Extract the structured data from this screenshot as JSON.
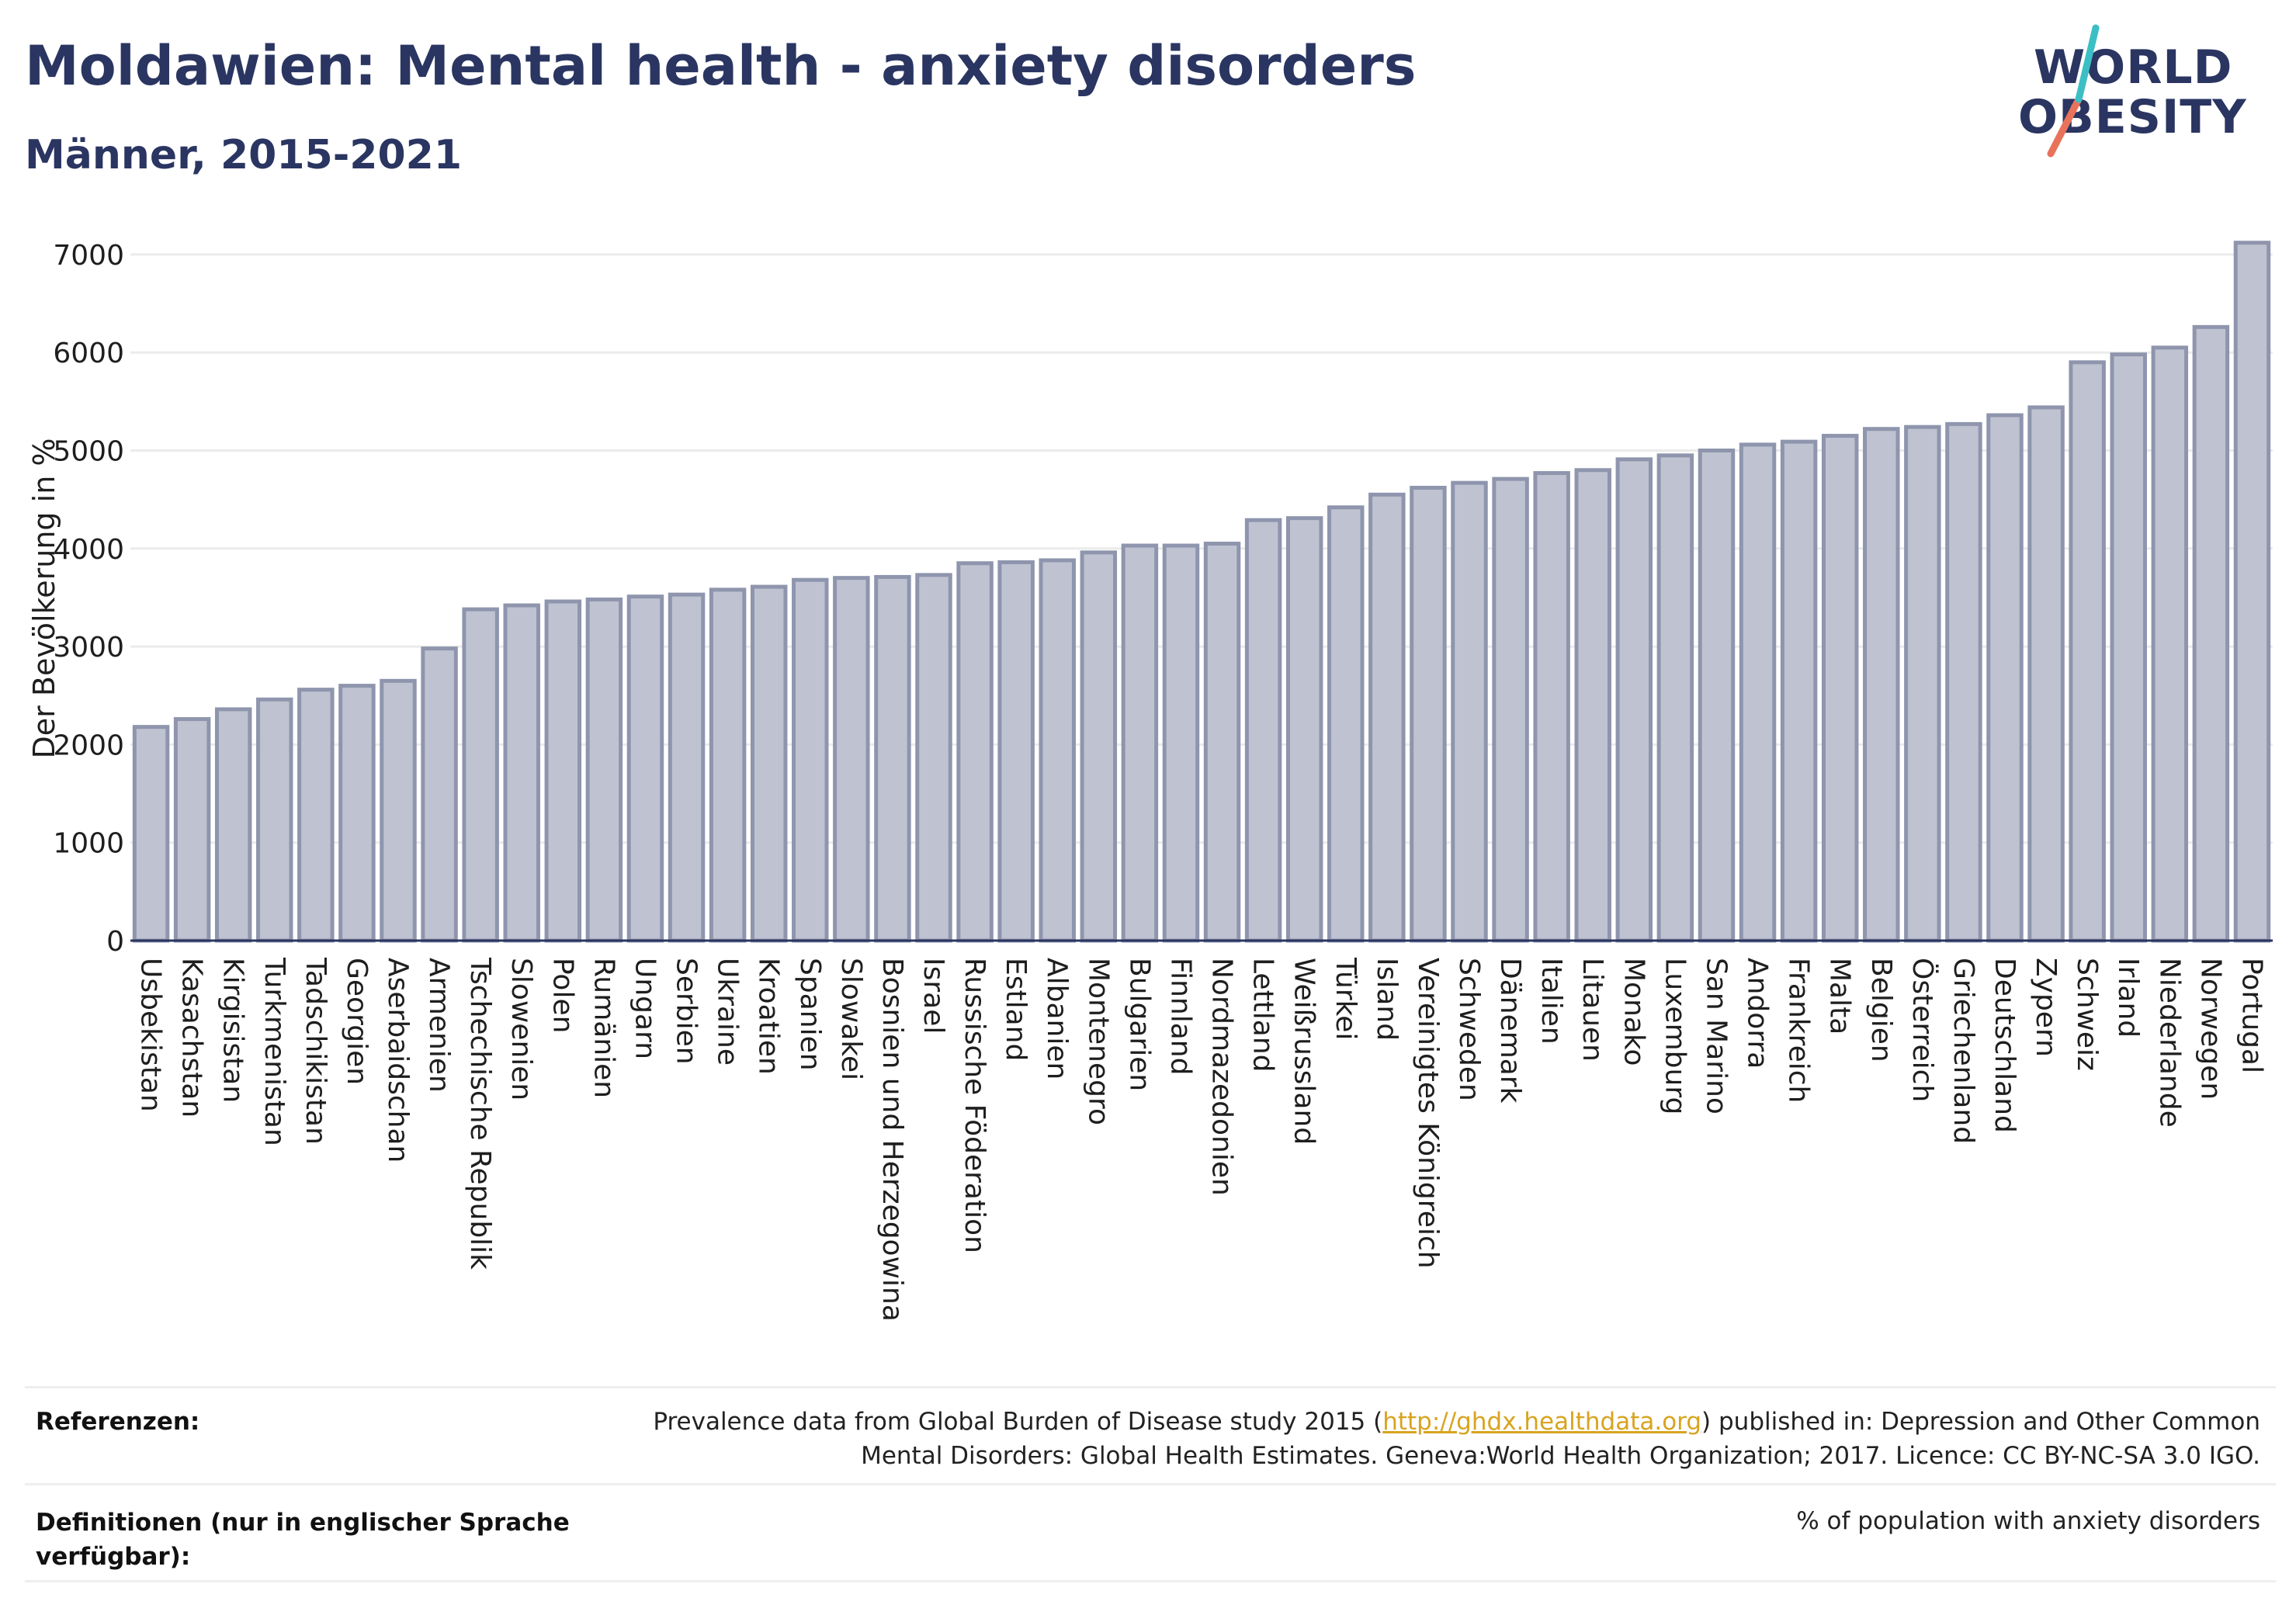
{
  "header": {
    "title": "Moldawien: Mental health - anxiety disorders",
    "subtitle": "Männer, 2015-2021"
  },
  "logo": {
    "line1": "WORLD",
    "line2": "OBESITY",
    "accent_colors": [
      "#e8735a",
      "#3bbfc4"
    ]
  },
  "chart_data": {
    "type": "bar",
    "ylabel": "Der Bevölkerung in %",
    "ylim": [
      0,
      7300
    ],
    "yticks": [
      0,
      1000,
      2000,
      3000,
      4000,
      5000,
      6000,
      7000
    ],
    "grid": true,
    "bar_color": "#bfc3d1",
    "bar_edge_color": "#8e95ad",
    "categories": [
      "Usbekistan",
      "Kasachstan",
      "Kirgisistan",
      "Turkmenistan",
      "Tadschikistan",
      "Georgien",
      "Aserbaidschan",
      "Armenien",
      "Tschechische Republik",
      "Slowenien",
      "Polen",
      "Rumänien",
      "Ungarn",
      "Serbien",
      "Ukraine",
      "Kroatien",
      "Spanien",
      "Slowakei",
      "Bosnien und Herzegowina",
      "Israel",
      "Russische Föderation",
      "Estland",
      "Albanien",
      "Montenegro",
      "Bulgarien",
      "Finnland",
      "Nordmazedonien",
      "Lettland",
      "Weißrussland",
      "Türkei",
      "Island",
      "Vereinigtes Königreich",
      "Schweden",
      "Dänemark",
      "Italien",
      "Litauen",
      "Monako",
      "Luxemburg",
      "San Marino",
      "Andorra",
      "Frankreich",
      "Malta",
      "Belgien",
      "Österreich",
      "Griechenland",
      "Deutschland",
      "Zypern",
      "Schweiz",
      "Irland",
      "Niederlande",
      "Norwegen",
      "Portugal"
    ],
    "values": [
      2180,
      2260,
      2360,
      2460,
      2560,
      2600,
      2650,
      2980,
      3380,
      3420,
      3460,
      3480,
      3510,
      3530,
      3580,
      3610,
      3680,
      3700,
      3710,
      3730,
      3850,
      3860,
      3880,
      3960,
      4030,
      4030,
      4050,
      4290,
      4310,
      4420,
      4550,
      4620,
      4670,
      4710,
      4770,
      4800,
      4910,
      4950,
      5000,
      5060,
      5090,
      5150,
      5220,
      5240,
      5270,
      5360,
      5440,
      5900,
      5980,
      6050,
      6260,
      7120
    ]
  },
  "footer": {
    "ref_label": "Referenzen:",
    "ref_line1_before": "Prevalence data from Global Burden of Disease study 2015 (",
    "ref_link": "http://ghdx.healthdata.org",
    "ref_line1_after": ") published in: Depression and Other Common",
    "ref_line2": "Mental Disorders: Global Health Estimates. Geneva:World Health Organization; 2017. Licence: CC BY-NC-SA 3.0 IGO.",
    "def_label_line1": "Definitionen (nur in englischer Sprache",
    "def_label_line2": "verfügbar):",
    "def_text": "% of population with anxiety disorders"
  }
}
